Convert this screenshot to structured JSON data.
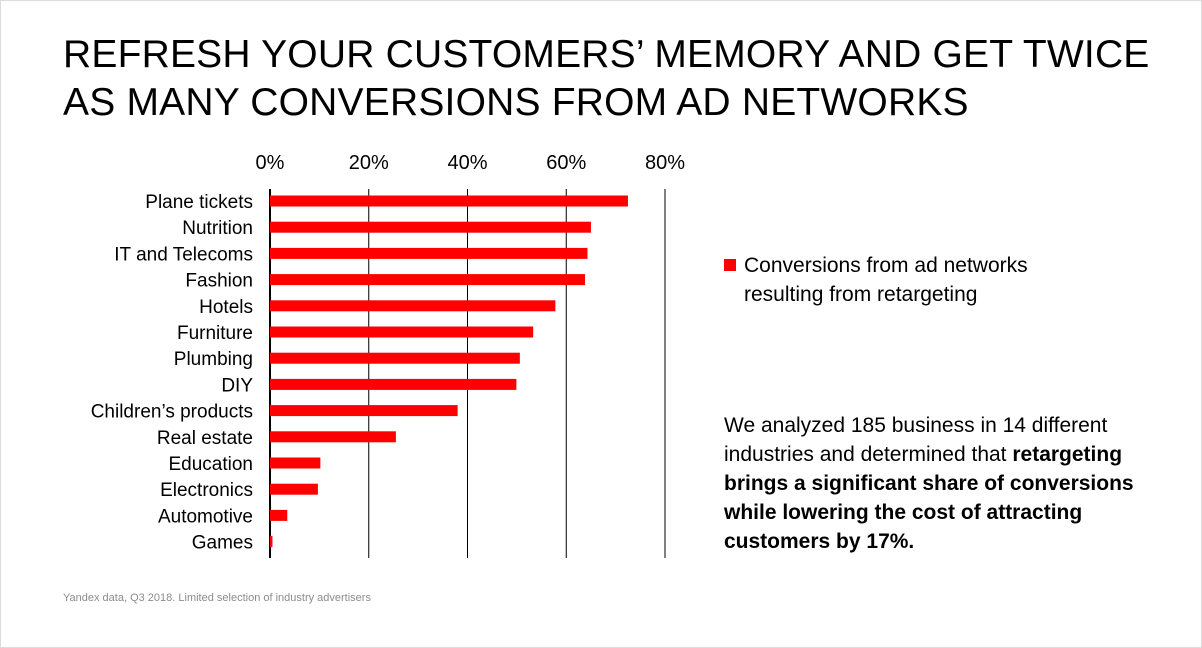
{
  "title": {
    "line1": "REFRESH YOUR CUSTOMERS’ MEMORY AND GET TWICE",
    "line2": "AS MANY CONVERSIONS FROM AD NETWORKS"
  },
  "chart_data": {
    "type": "bar",
    "orientation": "horizontal",
    "title": "",
    "xlabel": "",
    "ylabel": "",
    "xlim": [
      0,
      80
    ],
    "x_ticks": [
      "0%",
      "20%",
      "40%",
      "60%",
      "80%"
    ],
    "x_tick_values": [
      0,
      20,
      40,
      60,
      80
    ],
    "grid": true,
    "legend_position": "right",
    "categories": [
      "Plane tickets",
      "Nutrition",
      "IT and Telecoms",
      "Fashion",
      "Hotels",
      "Furniture",
      "Plumbing",
      "DIY",
      "Children’s products",
      "Real estate",
      "Education",
      "Electronics",
      "Automotive",
      "Games"
    ],
    "series": [
      {
        "name": "Conversions from ad networks resulting from retargeting",
        "color": "#ff0000",
        "values": [
          72.5,
          65,
          64.3,
          63.8,
          57.8,
          53.3,
          50.6,
          49.9,
          38,
          25.5,
          10.2,
          9.7,
          3.5,
          0.5
        ]
      }
    ]
  },
  "legend": {
    "label": "Conversions from ad networks resulting from retargeting"
  },
  "note": {
    "plain": "We analyzed 185 business in 14 different industries and determined that ",
    "bold": "retargeting brings a significant share of conversions while lowering the cost of attracting customers by 17%."
  },
  "source": "Yandex data, Q3 2018. Limited selection of industry advertisers",
  "colors": {
    "bar": "#ff0000",
    "grid": "#000000",
    "source_text": "#8c8c8c"
  }
}
